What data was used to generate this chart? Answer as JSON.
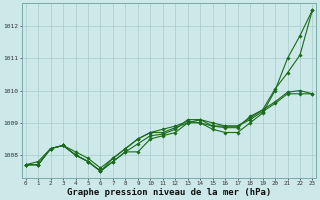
{
  "title": "Graphe pression niveau de la mer (hPa)",
  "bg_color": "#cce8e8",
  "grid_color": "#aacccc",
  "line_color": "#1a6b1a",
  "x_hours": [
    0,
    1,
    2,
    3,
    4,
    5,
    6,
    7,
    8,
    9,
    10,
    11,
    12,
    13,
    14,
    15,
    16,
    17,
    18,
    19,
    20,
    21,
    22,
    23
  ],
  "series": [
    [
      1007.7,
      1007.7,
      1008.2,
      1008.3,
      1008.0,
      1007.8,
      1007.5,
      1007.8,
      1008.1,
      1008.1,
      1008.5,
      1008.6,
      1008.7,
      1009.0,
      1009.0,
      1008.8,
      1008.7,
      1008.7,
      1009.0,
      1009.3,
      1010.0,
      1011.0,
      1011.7,
      1012.5
    ],
    [
      1007.7,
      1007.7,
      1008.2,
      1008.3,
      1008.0,
      1007.8,
      1007.5,
      1007.9,
      1008.2,
      1008.5,
      1008.7,
      1008.7,
      1008.85,
      1009.0,
      1009.1,
      1009.0,
      1008.9,
      1008.9,
      1009.1,
      1009.35,
      1009.6,
      1009.9,
      1009.9,
      1009.9
    ],
    [
      1007.7,
      1007.8,
      1008.2,
      1008.3,
      1008.1,
      1007.9,
      1007.6,
      1007.9,
      1008.2,
      1008.5,
      1008.7,
      1008.8,
      1008.9,
      1009.05,
      1009.0,
      1008.9,
      1008.9,
      1008.9,
      1009.15,
      1009.4,
      1009.65,
      1009.95,
      1010.0,
      1009.9
    ],
    [
      1007.7,
      1007.7,
      1008.2,
      1008.3,
      1008.0,
      1007.8,
      1007.5,
      1007.8,
      1008.1,
      1008.35,
      1008.6,
      1008.65,
      1008.8,
      1009.1,
      1009.1,
      1008.9,
      1008.85,
      1008.85,
      1009.2,
      1009.4,
      1010.05,
      1010.55,
      1011.1,
      1012.5
    ]
  ],
  "ylim": [
    1007.3,
    1012.7
  ],
  "yticks": [
    1008,
    1009,
    1010,
    1011,
    1012
  ],
  "xlim": [
    -0.3,
    23.3
  ]
}
